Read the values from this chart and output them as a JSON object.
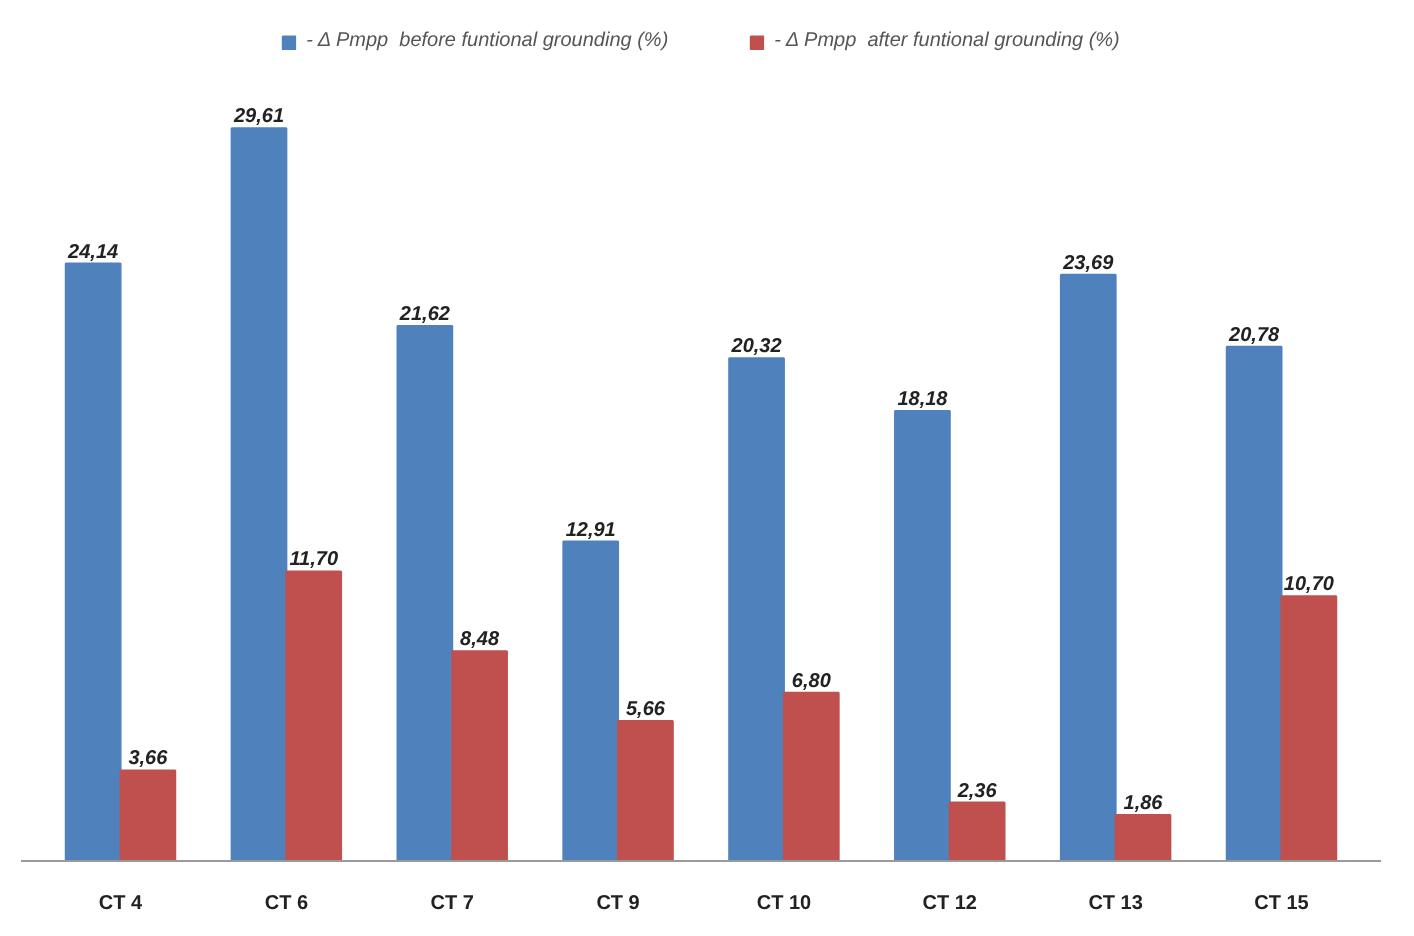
{
  "chart_data": {
    "type": "bar",
    "categories": [
      "CT 4",
      "CT 6",
      "CT 7",
      "CT 9",
      "CT 10",
      "CT 12",
      "CT 13",
      "CT 15"
    ],
    "series": [
      {
        "name": "- Δ Pmpp  before funtional grounding (%)",
        "color": "#4f81bd",
        "values": [
          24.14,
          29.61,
          21.62,
          12.91,
          20.32,
          18.18,
          23.69,
          20.78
        ],
        "value_labels": [
          "24,14",
          "29,61",
          "21,62",
          "12,91",
          "20,32",
          "18,18",
          "23,69",
          "20,78"
        ]
      },
      {
        "name": "- Δ Pmpp  after funtional grounding (%)",
        "color": "#c0504d",
        "values": [
          3.66,
          11.7,
          8.48,
          5.66,
          6.8,
          2.36,
          1.86,
          10.7
        ],
        "value_labels": [
          "3,66",
          "11,70",
          "8,48",
          "5,66",
          "6,80",
          "2,36",
          "1,86",
          "10,70"
        ]
      }
    ],
    "legend": "top",
    "tick_labels": "x"
  }
}
